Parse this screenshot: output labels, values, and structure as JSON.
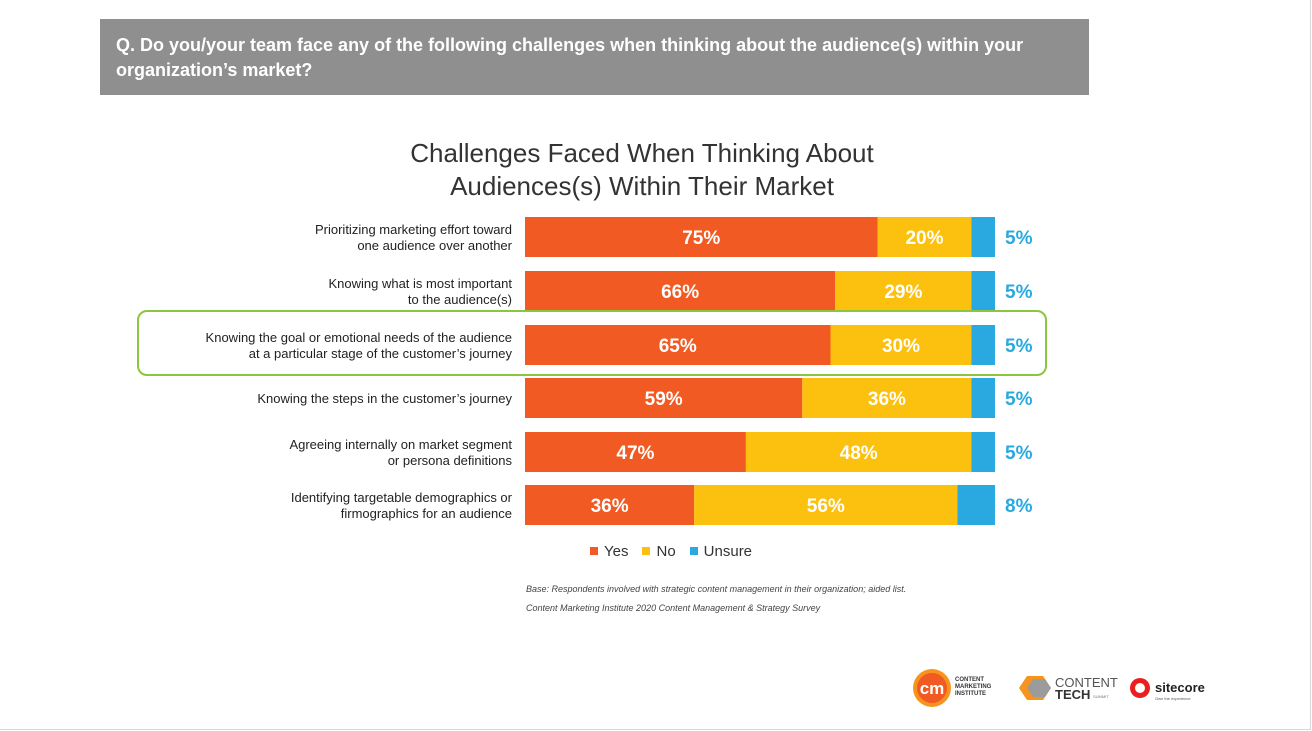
{
  "question": "Q. Do you/your team face any of the following challenges when thinking about the audience(s) within your organization’s market?",
  "colors": {
    "yes": "#f15a22",
    "no": "#fcc10e",
    "unsure": "#29a9e0",
    "unsure_label": "#29a9e0",
    "highlight": "#8cc63f"
  },
  "chart_data": {
    "type": "bar",
    "orientation": "horizontal",
    "stacked": true,
    "title": "Challenges Faced When Thinking About Audiences(s) Within Their Market",
    "title_lines": [
      "Challenges Faced When Thinking About",
      "Audiences(s) Within Their Market"
    ],
    "categories": [
      [
        "Prioritizing marketing effort toward",
        "one audience over another"
      ],
      [
        "Knowing what is most important",
        "to the audience(s)"
      ],
      [
        "Knowing the goal or emotional needs of the audience",
        "at a particular stage of the customer’s journey"
      ],
      [
        "Knowing the steps in the customer’s journey"
      ],
      [
        "Agreeing internally on market segment",
        "or persona definitions"
      ],
      [
        "Identifying targetable demographics or",
        "firmographics for an audience"
      ]
    ],
    "series": [
      {
        "name": "Yes",
        "values": [
          75,
          66,
          65,
          59,
          47,
          36
        ]
      },
      {
        "name": "No",
        "values": [
          20,
          29,
          30,
          36,
          48,
          56
        ]
      },
      {
        "name": "Unsure",
        "values": [
          5,
          5,
          5,
          5,
          5,
          8
        ]
      }
    ],
    "unit": "%",
    "xlim": [
      0,
      100
    ],
    "highlighted_row": 2,
    "legend_position": "bottom"
  },
  "notes": {
    "base": "Base: Respondents involved with strategic content management in their organization; aided list.",
    "source": "Content Marketing Institute 2020 Content Management & Strategy Survey"
  },
  "logos": {
    "cmi": {
      "mark": "cm",
      "text": [
        "CONTENT",
        "MARKETING",
        "INSTITUTE"
      ]
    },
    "contenttech": {
      "line1": "CONTENT",
      "line2": "TECH",
      "sub": "SUMMIT"
    },
    "sitecore": {
      "name": "sitecore",
      "tagline": "Own the experience"
    }
  }
}
